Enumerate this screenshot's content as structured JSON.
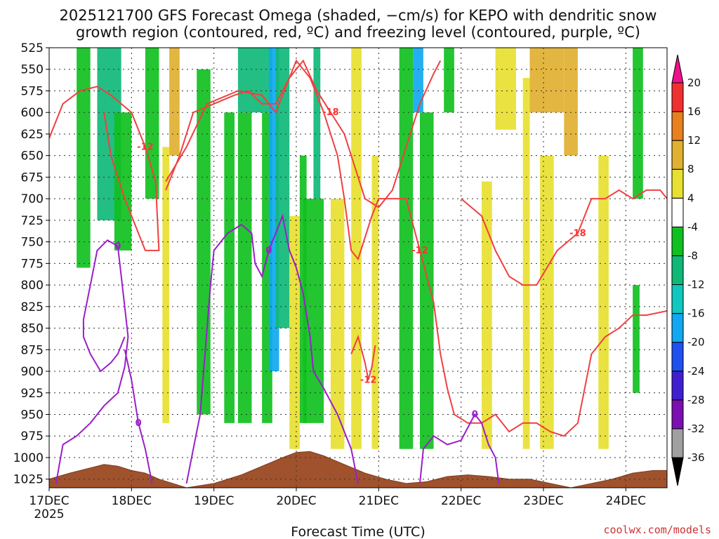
{
  "chart_data": {
    "type": "heatmap",
    "title_line1": "2025121700 GFS Forecast Omega (shaded, −cm/s) for KEPO with dendritic snow",
    "title_line2": "growth region (contoured, red, ºC) and freezing level (contoured, purple, ºC)",
    "xlabel": "Forecast Time (UTC)",
    "credit": "coolwx.com/models",
    "x_range_hours": [
      0,
      180
    ],
    "y_range_hpa": [
      525,
      1035
    ],
    "y_ticks": [
      525,
      550,
      575,
      600,
      625,
      650,
      675,
      700,
      725,
      750,
      775,
      800,
      825,
      850,
      875,
      900,
      925,
      950,
      975,
      1000,
      1025
    ],
    "y_tick_labels": [
      "525",
      "550",
      "575",
      "600",
      "625",
      "650",
      "675",
      "700",
      "725",
      "750",
      "775",
      "800",
      "825",
      "850",
      "875",
      "900",
      "925",
      "950",
      "975",
      "1000",
      "1025"
    ],
    "x_ticks_hours": [
      0,
      24,
      48,
      72,
      96,
      120,
      144,
      168
    ],
    "x_tick_labels": [
      "17DEC",
      "18DEC",
      "19DEC",
      "20DEC",
      "21DEC",
      "22DEC",
      "23DEC",
      "24DEC"
    ],
    "x_year_label": "2025",
    "colorbar": {
      "colors": [
        "#ffffff",
        "#a0a0a0",
        "#7a10b0",
        "#3f1fd0",
        "#1f50f0",
        "#10a8f0",
        "#10c8c0",
        "#10b878",
        "#10c020",
        "#ffffff",
        "#e8e030",
        "#e0b030",
        "#e88020",
        "#f03030",
        "#f0108c"
      ],
      "labels": [
        "-36",
        "-32",
        "-28",
        "-24",
        "-20",
        "-16",
        "-12",
        "-8",
        "-4",
        "4",
        "8",
        "12",
        "16",
        "20"
      ]
    },
    "omega_bands": [
      {
        "x": [
          8,
          12
        ],
        "top": 525,
        "bottom": 780,
        "category": "green"
      },
      {
        "x": [
          14,
          21
        ],
        "top": 525,
        "bottom": 725,
        "category": "teal"
      },
      {
        "x": [
          19,
          24
        ],
        "top": 600,
        "bottom": 760,
        "category": "green"
      },
      {
        "x": [
          28,
          32
        ],
        "top": 525,
        "bottom": 700,
        "category": "green"
      },
      {
        "x": [
          33,
          35
        ],
        "top": 640,
        "bottom": 960,
        "category": "yellow"
      },
      {
        "x": [
          35,
          38
        ],
        "top": 525,
        "bottom": 650,
        "category": "orange"
      },
      {
        "x": [
          43,
          47
        ],
        "top": 550,
        "bottom": 950,
        "category": "green"
      },
      {
        "x": [
          51,
          54
        ],
        "top": 600,
        "bottom": 960,
        "category": "green"
      },
      {
        "x": [
          55,
          59
        ],
        "top": 600,
        "bottom": 960,
        "category": "green"
      },
      {
        "x": [
          62,
          65
        ],
        "top": 600,
        "bottom": 960,
        "category": "green"
      },
      {
        "x": [
          55,
          65
        ],
        "top": 525,
        "bottom": 600,
        "category": "teal"
      },
      {
        "x": [
          64,
          67
        ],
        "top": 525,
        "bottom": 900,
        "category": "blue"
      },
      {
        "x": [
          66,
          70
        ],
        "top": 525,
        "bottom": 850,
        "category": "teal"
      },
      {
        "x": [
          73,
          75
        ],
        "top": 650,
        "bottom": 960,
        "category": "green"
      },
      {
        "x": [
          77,
          79
        ],
        "top": 525,
        "bottom": 700,
        "category": "teal"
      },
      {
        "x": [
          74,
          80
        ],
        "top": 700,
        "bottom": 960,
        "category": "green"
      },
      {
        "x": [
          70,
          73
        ],
        "top": 720,
        "bottom": 990,
        "category": "yellow"
      },
      {
        "x": [
          82,
          86
        ],
        "top": 700,
        "bottom": 990,
        "category": "yellow"
      },
      {
        "x": [
          88,
          91
        ],
        "top": 525,
        "bottom": 990,
        "category": "yellow"
      },
      {
        "x": [
          94,
          96
        ],
        "top": 650,
        "bottom": 990,
        "category": "yellow"
      },
      {
        "x": [
          102,
          106
        ],
        "top": 525,
        "bottom": 990,
        "category": "green"
      },
      {
        "x": [
          106,
          109
        ],
        "top": 525,
        "bottom": 600,
        "category": "blue"
      },
      {
        "x": [
          108,
          112
        ],
        "top": 600,
        "bottom": 990,
        "category": "green"
      },
      {
        "x": [
          115,
          118
        ],
        "top": 525,
        "bottom": 600,
        "category": "green"
      },
      {
        "x": [
          126,
          129
        ],
        "top": 680,
        "bottom": 990,
        "category": "yellow"
      },
      {
        "x": [
          130,
          136
        ],
        "top": 525,
        "bottom": 620,
        "category": "yellow"
      },
      {
        "x": [
          138,
          140
        ],
        "top": 560,
        "bottom": 990,
        "category": "yellow"
      },
      {
        "x": [
          140,
          150
        ],
        "top": 525,
        "bottom": 600,
        "category": "orange"
      },
      {
        "x": [
          143,
          147
        ],
        "top": 650,
        "bottom": 990,
        "category": "yellow"
      },
      {
        "x": [
          150,
          154
        ],
        "top": 525,
        "bottom": 650,
        "category": "orange"
      },
      {
        "x": [
          160,
          163
        ],
        "top": 650,
        "bottom": 990,
        "category": "yellow"
      },
      {
        "x": [
          170,
          173
        ],
        "top": 525,
        "bottom": 700,
        "category": "green"
      },
      {
        "x": [
          170,
          172
        ],
        "top": 800,
        "bottom": 925,
        "category": "green"
      }
    ],
    "red_contours": [
      {
        "label": "-12",
        "points": [
          [
            0,
            630
          ],
          [
            4,
            590
          ],
          [
            9,
            575
          ],
          [
            14,
            570
          ],
          [
            18,
            580
          ],
          [
            24,
            600
          ],
          [
            28,
            640
          ],
          [
            31,
            680
          ],
          [
            32,
            760
          ],
          [
            28,
            760
          ],
          [
            22,
            700
          ],
          [
            18,
            650
          ],
          [
            16,
            600
          ]
        ]
      },
      {
        "label": "-18",
        "points": [
          [
            34,
            680
          ],
          [
            40,
            640
          ],
          [
            46,
            590
          ],
          [
            55,
            575
          ],
          [
            62,
            580
          ],
          [
            66,
            600
          ],
          [
            70,
            560
          ],
          [
            74,
            540
          ],
          [
            78,
            575
          ],
          [
            82,
            600
          ],
          [
            86,
            625
          ],
          [
            88,
            650
          ],
          [
            92,
            700
          ],
          [
            96,
            710
          ],
          [
            100,
            690
          ],
          [
            104,
            640
          ],
          [
            108,
            590
          ],
          [
            112,
            555
          ],
          [
            114,
            540
          ]
        ]
      },
      {
        "label": "-12",
        "points": [
          [
            34,
            690
          ],
          [
            38,
            650
          ],
          [
            42,
            600
          ],
          [
            48,
            590
          ],
          [
            54,
            580
          ],
          [
            58,
            575
          ],
          [
            62,
            590
          ],
          [
            66,
            590
          ],
          [
            70,
            560
          ],
          [
            72,
            540
          ],
          [
            76,
            560
          ],
          [
            80,
            600
          ],
          [
            84,
            650
          ],
          [
            86,
            700
          ],
          [
            88,
            760
          ],
          [
            90,
            770
          ],
          [
            94,
            720
          ],
          [
            96,
            700
          ],
          [
            100,
            700
          ],
          [
            104,
            700
          ],
          [
            108,
            760
          ],
          [
            112,
            820
          ],
          [
            114,
            880
          ],
          [
            116,
            920
          ],
          [
            118,
            950
          ],
          [
            122,
            960
          ],
          [
            126,
            960
          ],
          [
            130,
            950
          ],
          [
            134,
            970
          ],
          [
            138,
            960
          ],
          [
            142,
            960
          ],
          [
            146,
            970
          ],
          [
            150,
            975
          ],
          [
            154,
            960
          ],
          [
            156,
            920
          ],
          [
            158,
            880
          ],
          [
            162,
            860
          ],
          [
            166,
            850
          ],
          [
            170,
            835
          ],
          [
            174,
            835
          ],
          [
            180,
            830
          ]
        ]
      },
      {
        "label": "-18",
        "points": [
          [
            120,
            700
          ],
          [
            126,
            720
          ],
          [
            130,
            760
          ],
          [
            134,
            790
          ],
          [
            138,
            800
          ],
          [
            142,
            800
          ],
          [
            148,
            760
          ],
          [
            154,
            740
          ],
          [
            158,
            700
          ],
          [
            162,
            700
          ],
          [
            166,
            690
          ],
          [
            170,
            700
          ],
          [
            174,
            690
          ],
          [
            178,
            690
          ],
          [
            180,
            700
          ]
        ]
      },
      {
        "label": "-12",
        "points": [
          [
            88,
            880
          ],
          [
            90,
            860
          ],
          [
            92,
            890
          ],
          [
            93,
            910
          ],
          [
            94,
            895
          ],
          [
            95,
            870
          ]
        ]
      }
    ],
    "purple_contours": [
      {
        "label": "0",
        "points": [
          [
            2,
            1030
          ],
          [
            4,
            985
          ],
          [
            8,
            975
          ],
          [
            12,
            960
          ],
          [
            16,
            940
          ],
          [
            20,
            925
          ],
          [
            22,
            895
          ],
          [
            23,
            860
          ],
          [
            22,
            825
          ],
          [
            21,
            790
          ],
          [
            20,
            755
          ],
          [
            17,
            748
          ],
          [
            14,
            760
          ],
          [
            12,
            800
          ],
          [
            10,
            840
          ],
          [
            10,
            860
          ],
          [
            12,
            880
          ],
          [
            15,
            900
          ],
          [
            18,
            890
          ],
          [
            20,
            880
          ],
          [
            22,
            860
          ]
        ]
      },
      {
        "label": "0",
        "points": [
          [
            22,
            875
          ],
          [
            24,
            910
          ],
          [
            26,
            960
          ],
          [
            28,
            990
          ],
          [
            30,
            1030
          ]
        ]
      },
      {
        "label": "0",
        "points": [
          [
            40,
            1030
          ],
          [
            42,
            990
          ],
          [
            44,
            950
          ],
          [
            45,
            900
          ],
          [
            46,
            850
          ],
          [
            47,
            800
          ],
          [
            48,
            760
          ],
          [
            52,
            740
          ],
          [
            56,
            730
          ],
          [
            59,
            740
          ],
          [
            60,
            775
          ],
          [
            62,
            790
          ],
          [
            64,
            760
          ],
          [
            66,
            740
          ],
          [
            68,
            720
          ],
          [
            70,
            760
          ],
          [
            72,
            780
          ],
          [
            74,
            810
          ],
          [
            76,
            860
          ],
          [
            77,
            900
          ],
          [
            80,
            920
          ],
          [
            84,
            950
          ],
          [
            88,
            990
          ],
          [
            90,
            1030
          ]
        ]
      },
      {
        "label": "0",
        "points": [
          [
            108,
            1030
          ],
          [
            109,
            990
          ],
          [
            112,
            975
          ],
          [
            116,
            985
          ],
          [
            120,
            980
          ],
          [
            124,
            950
          ],
          [
            126,
            960
          ],
          [
            128,
            985
          ],
          [
            130,
            1000
          ],
          [
            131,
            1030
          ]
        ]
      }
    ],
    "terrain_surface": [
      [
        0,
        1025
      ],
      [
        6,
        1018
      ],
      [
        12,
        1012
      ],
      [
        16,
        1008
      ],
      [
        20,
        1010
      ],
      [
        24,
        1015
      ],
      [
        28,
        1018
      ],
      [
        32,
        1025
      ],
      [
        36,
        1030
      ],
      [
        40,
        1035
      ],
      [
        48,
        1030
      ],
      [
        56,
        1020
      ],
      [
        62,
        1010
      ],
      [
        68,
        1000
      ],
      [
        72,
        994
      ],
      [
        76,
        993
      ],
      [
        80,
        998
      ],
      [
        86,
        1008
      ],
      [
        92,
        1018
      ],
      [
        98,
        1025
      ],
      [
        104,
        1030
      ],
      [
        110,
        1028
      ],
      [
        116,
        1022
      ],
      [
        122,
        1020
      ],
      [
        128,
        1022
      ],
      [
        134,
        1025
      ],
      [
        140,
        1025
      ],
      [
        146,
        1030
      ],
      [
        152,
        1035
      ],
      [
        158,
        1030
      ],
      [
        164,
        1025
      ],
      [
        170,
        1018
      ],
      [
        176,
        1015
      ],
      [
        180,
        1015
      ]
    ]
  }
}
